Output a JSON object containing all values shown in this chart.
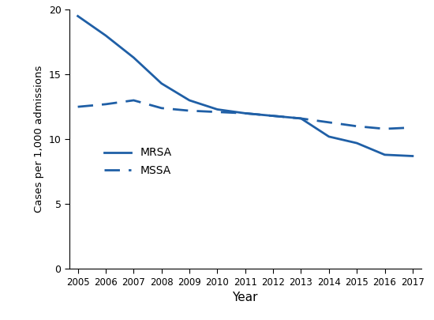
{
  "years": [
    2005,
    2006,
    2007,
    2008,
    2009,
    2010,
    2011,
    2012,
    2013,
    2014,
    2015,
    2016,
    2017
  ],
  "mrsa": [
    19.5,
    18.0,
    16.3,
    14.3,
    13.0,
    12.3,
    12.0,
    11.8,
    11.6,
    10.2,
    9.7,
    8.8,
    8.7
  ],
  "mssa": [
    12.5,
    12.7,
    13.0,
    12.4,
    12.2,
    12.1,
    12.0,
    11.8,
    11.6,
    11.3,
    11.0,
    10.8,
    10.9
  ],
  "line_color": "#1f5fa6",
  "ylabel": "Cases per 1,000 admissions",
  "xlabel": "Year",
  "ylim": [
    0,
    20
  ],
  "yticks": [
    0,
    5,
    10,
    15,
    20
  ],
  "legend_mrsa": "MRSA",
  "legend_mssa": "MSSA",
  "linewidth": 2.0
}
